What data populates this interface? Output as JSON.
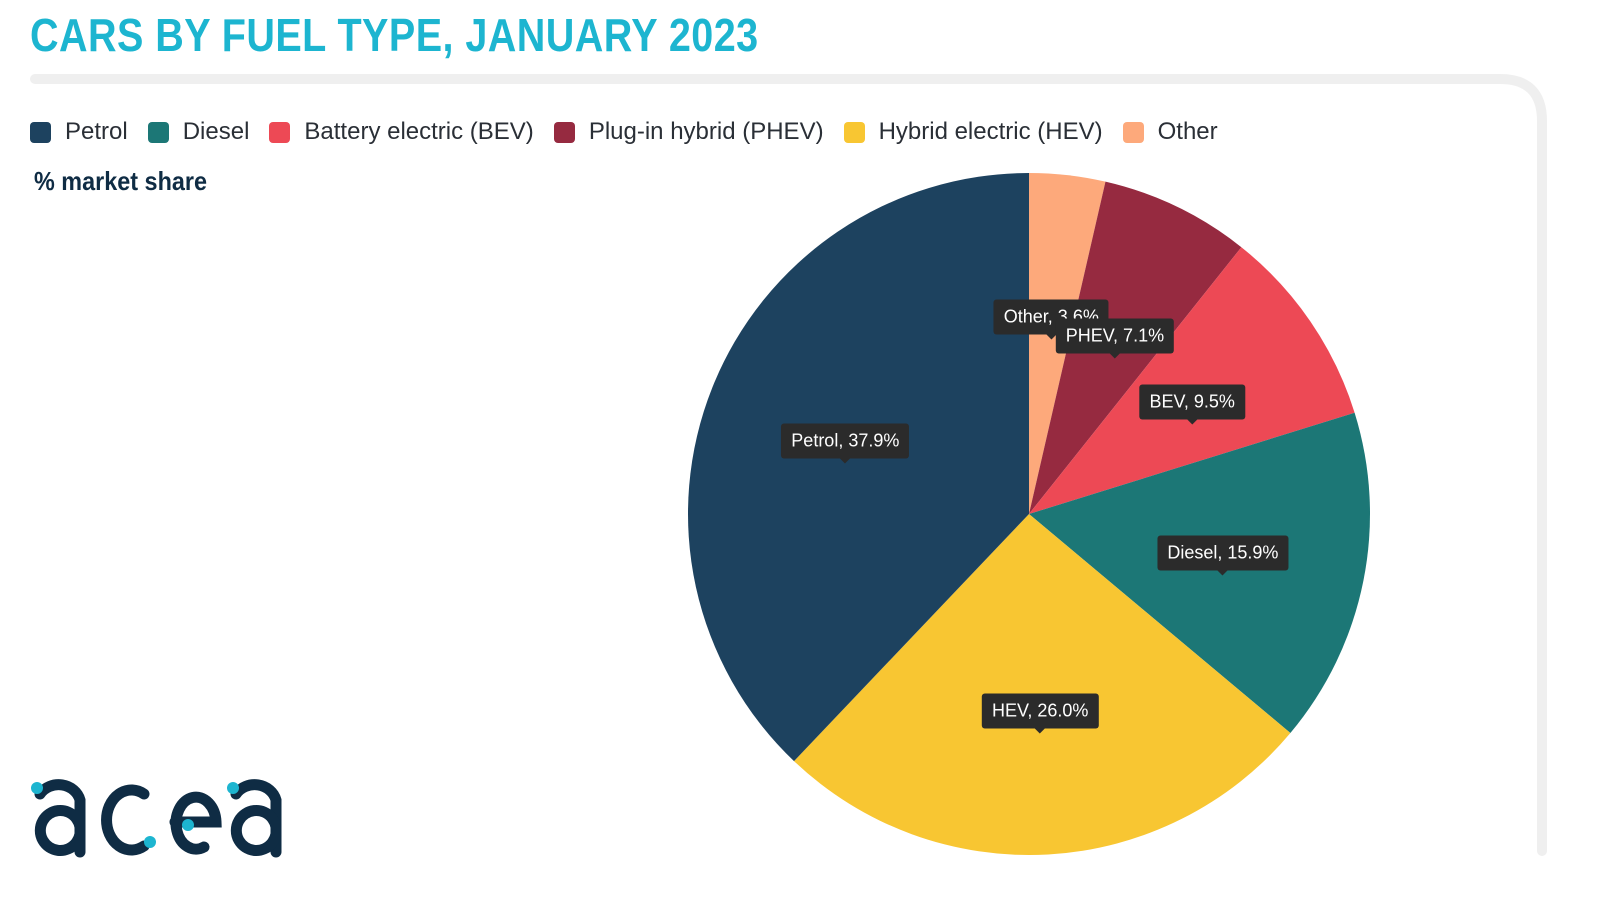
{
  "chart_data": {
    "type": "pie",
    "title": "CARS BY FUEL TYPE, JANUARY 2023",
    "subtitle": "% market share",
    "legend_position": "top",
    "legend": [
      {
        "name": "Petrol",
        "color": "#1d425f"
      },
      {
        "name": "Diesel",
        "color": "#1c7776"
      },
      {
        "name": "Battery electric (BEV)",
        "color": "#ed4955"
      },
      {
        "name": "Plug-in hybrid (PHEV)",
        "color": "#962a40"
      },
      {
        "name": "Hybrid electric (HEV)",
        "color": "#f8c632"
      },
      {
        "name": "Other",
        "color": "#fda97b"
      }
    ],
    "slices": [
      {
        "name": "Other",
        "value": 3.6,
        "label": "Other, 3.6%",
        "color": "#fda97b"
      },
      {
        "name": "PHEV",
        "value": 7.1,
        "label": "PHEV, 7.1%",
        "color": "#962a40"
      },
      {
        "name": "BEV",
        "value": 9.5,
        "label": "BEV, 9.5%",
        "color": "#ed4955"
      },
      {
        "name": "Diesel",
        "value": 15.9,
        "label": "Diesel, 15.9%",
        "color": "#1c7776"
      },
      {
        "name": "HEV",
        "value": 26.0,
        "label": "HEV, 26.0%",
        "color": "#f8c632"
      },
      {
        "name": "Petrol",
        "value": 37.9,
        "label": "Petrol, 37.9%",
        "color": "#1d425f"
      }
    ]
  },
  "brand": {
    "name": "acea",
    "color": "#0f2c44",
    "accent": "#1db5d0"
  }
}
